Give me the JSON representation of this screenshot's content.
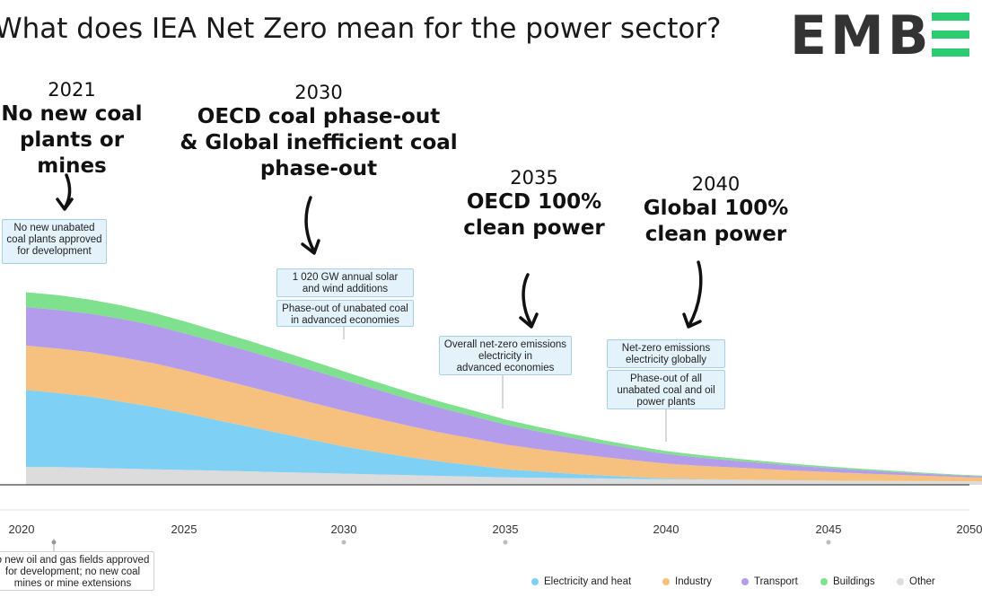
{
  "title": "What does IEA Net Zero mean for the power sector?",
  "logo_text": "EMBER",
  "milestones": [
    {
      "year": "2021",
      "text": "No new coal\nplants or mines"
    },
    {
      "year": "2030",
      "text": "OECD coal phase-out\n& Global inefficient coal\nphase-out"
    },
    {
      "year": "2035",
      "text": "OECD 100%\nclean power"
    },
    {
      "year": "2040",
      "text": "Global 100%\nclean power"
    }
  ],
  "callouts": {
    "c2021": "No new unabated\ncoal plants approved\nfor development",
    "c2030a": "1 020 GW annual solar\nand wind additions",
    "c2030b": "Phase-out of unabated coal\nin advanced economies",
    "c2035": "Overall net-zero emissions\nelectricity in\nadvanced economies",
    "c2040a": "Net-zero emissions\nelectricity globally",
    "c2040b": "Phase-out of all\nunabated coal and oil\npower plants",
    "c2021b": "o new oil and gas fields approved\nfor development; no new coal\nmines or mine extensions"
  },
  "colors": {
    "electricity": "#7fd0f5",
    "industry": "#f6c07e",
    "transport": "#b39cec",
    "buildings": "#7fe08d",
    "other": "#dcdcdc",
    "callout_fill": "#e3f2fb",
    "ember_green": "#2ecc71",
    "ember_gray": "#333333"
  },
  "chart_data": {
    "type": "area",
    "stacked": true,
    "x": [
      2020,
      2021,
      2022,
      2023,
      2024,
      2025,
      2026,
      2027,
      2028,
      2029,
      2030,
      2031,
      2032,
      2033,
      2034,
      2035,
      2036,
      2037,
      2038,
      2039,
      2040,
      2041,
      2042,
      2043,
      2044,
      2045,
      2046,
      2047,
      2048,
      2049,
      2050
    ],
    "xticks": [
      "2020",
      "2025",
      "2030",
      "2035",
      "2040",
      "2045",
      "2050"
    ],
    "series": [
      {
        "name": "Other",
        "key": "other",
        "values": [
          1.2,
          1.2,
          1.15,
          1.1,
          1.05,
          1.0,
          0.95,
          0.9,
          0.85,
          0.8,
          0.75,
          0.7,
          0.65,
          0.6,
          0.55,
          0.5,
          0.48,
          0.45,
          0.43,
          0.4,
          0.38,
          0.36,
          0.34,
          0.32,
          0.3,
          0.28,
          0.27,
          0.26,
          0.25,
          0.24,
          0.23
        ]
      },
      {
        "name": "Electricity and heat",
        "key": "electricity",
        "values": [
          5.2,
          5.0,
          4.8,
          4.5,
          4.2,
          3.8,
          3.4,
          3.0,
          2.6,
          2.2,
          1.8,
          1.5,
          1.2,
          0.95,
          0.75,
          0.55,
          0.42,
          0.3,
          0.2,
          0.12,
          0.05,
          0.03,
          0.02,
          0.01,
          0.0,
          0.0,
          0.0,
          0.0,
          0.0,
          0.0,
          0.0
        ]
      },
      {
        "name": "Industry",
        "key": "industry",
        "values": [
          3.0,
          3.0,
          3.0,
          3.0,
          2.95,
          2.9,
          2.8,
          2.7,
          2.6,
          2.5,
          2.4,
          2.25,
          2.1,
          1.95,
          1.8,
          1.65,
          1.5,
          1.38,
          1.25,
          1.12,
          1.0,
          0.9,
          0.82,
          0.74,
          0.66,
          0.58,
          0.5,
          0.43,
          0.36,
          0.3,
          0.25
        ]
      },
      {
        "name": "Transport",
        "key": "transport",
        "values": [
          2.6,
          2.6,
          2.6,
          2.6,
          2.55,
          2.5,
          2.45,
          2.4,
          2.3,
          2.2,
          2.1,
          1.95,
          1.8,
          1.65,
          1.5,
          1.35,
          1.2,
          1.05,
          0.9,
          0.78,
          0.65,
          0.55,
          0.47,
          0.4,
          0.34,
          0.28,
          0.23,
          0.18,
          0.14,
          0.1,
          0.07
        ]
      },
      {
        "name": "Buildings",
        "key": "buildings",
        "values": [
          1.0,
          1.0,
          0.95,
          0.9,
          0.85,
          0.8,
          0.75,
          0.7,
          0.65,
          0.6,
          0.55,
          0.5,
          0.46,
          0.42,
          0.38,
          0.34,
          0.3,
          0.27,
          0.24,
          0.21,
          0.19,
          0.17,
          0.15,
          0.13,
          0.11,
          0.1,
          0.09,
          0.08,
          0.07,
          0.06,
          0.05
        ]
      }
    ],
    "legend": [
      "Electricity and heat",
      "Industry",
      "Transport",
      "Buildings",
      "Other"
    ],
    "legend_position": "bottom-right"
  }
}
